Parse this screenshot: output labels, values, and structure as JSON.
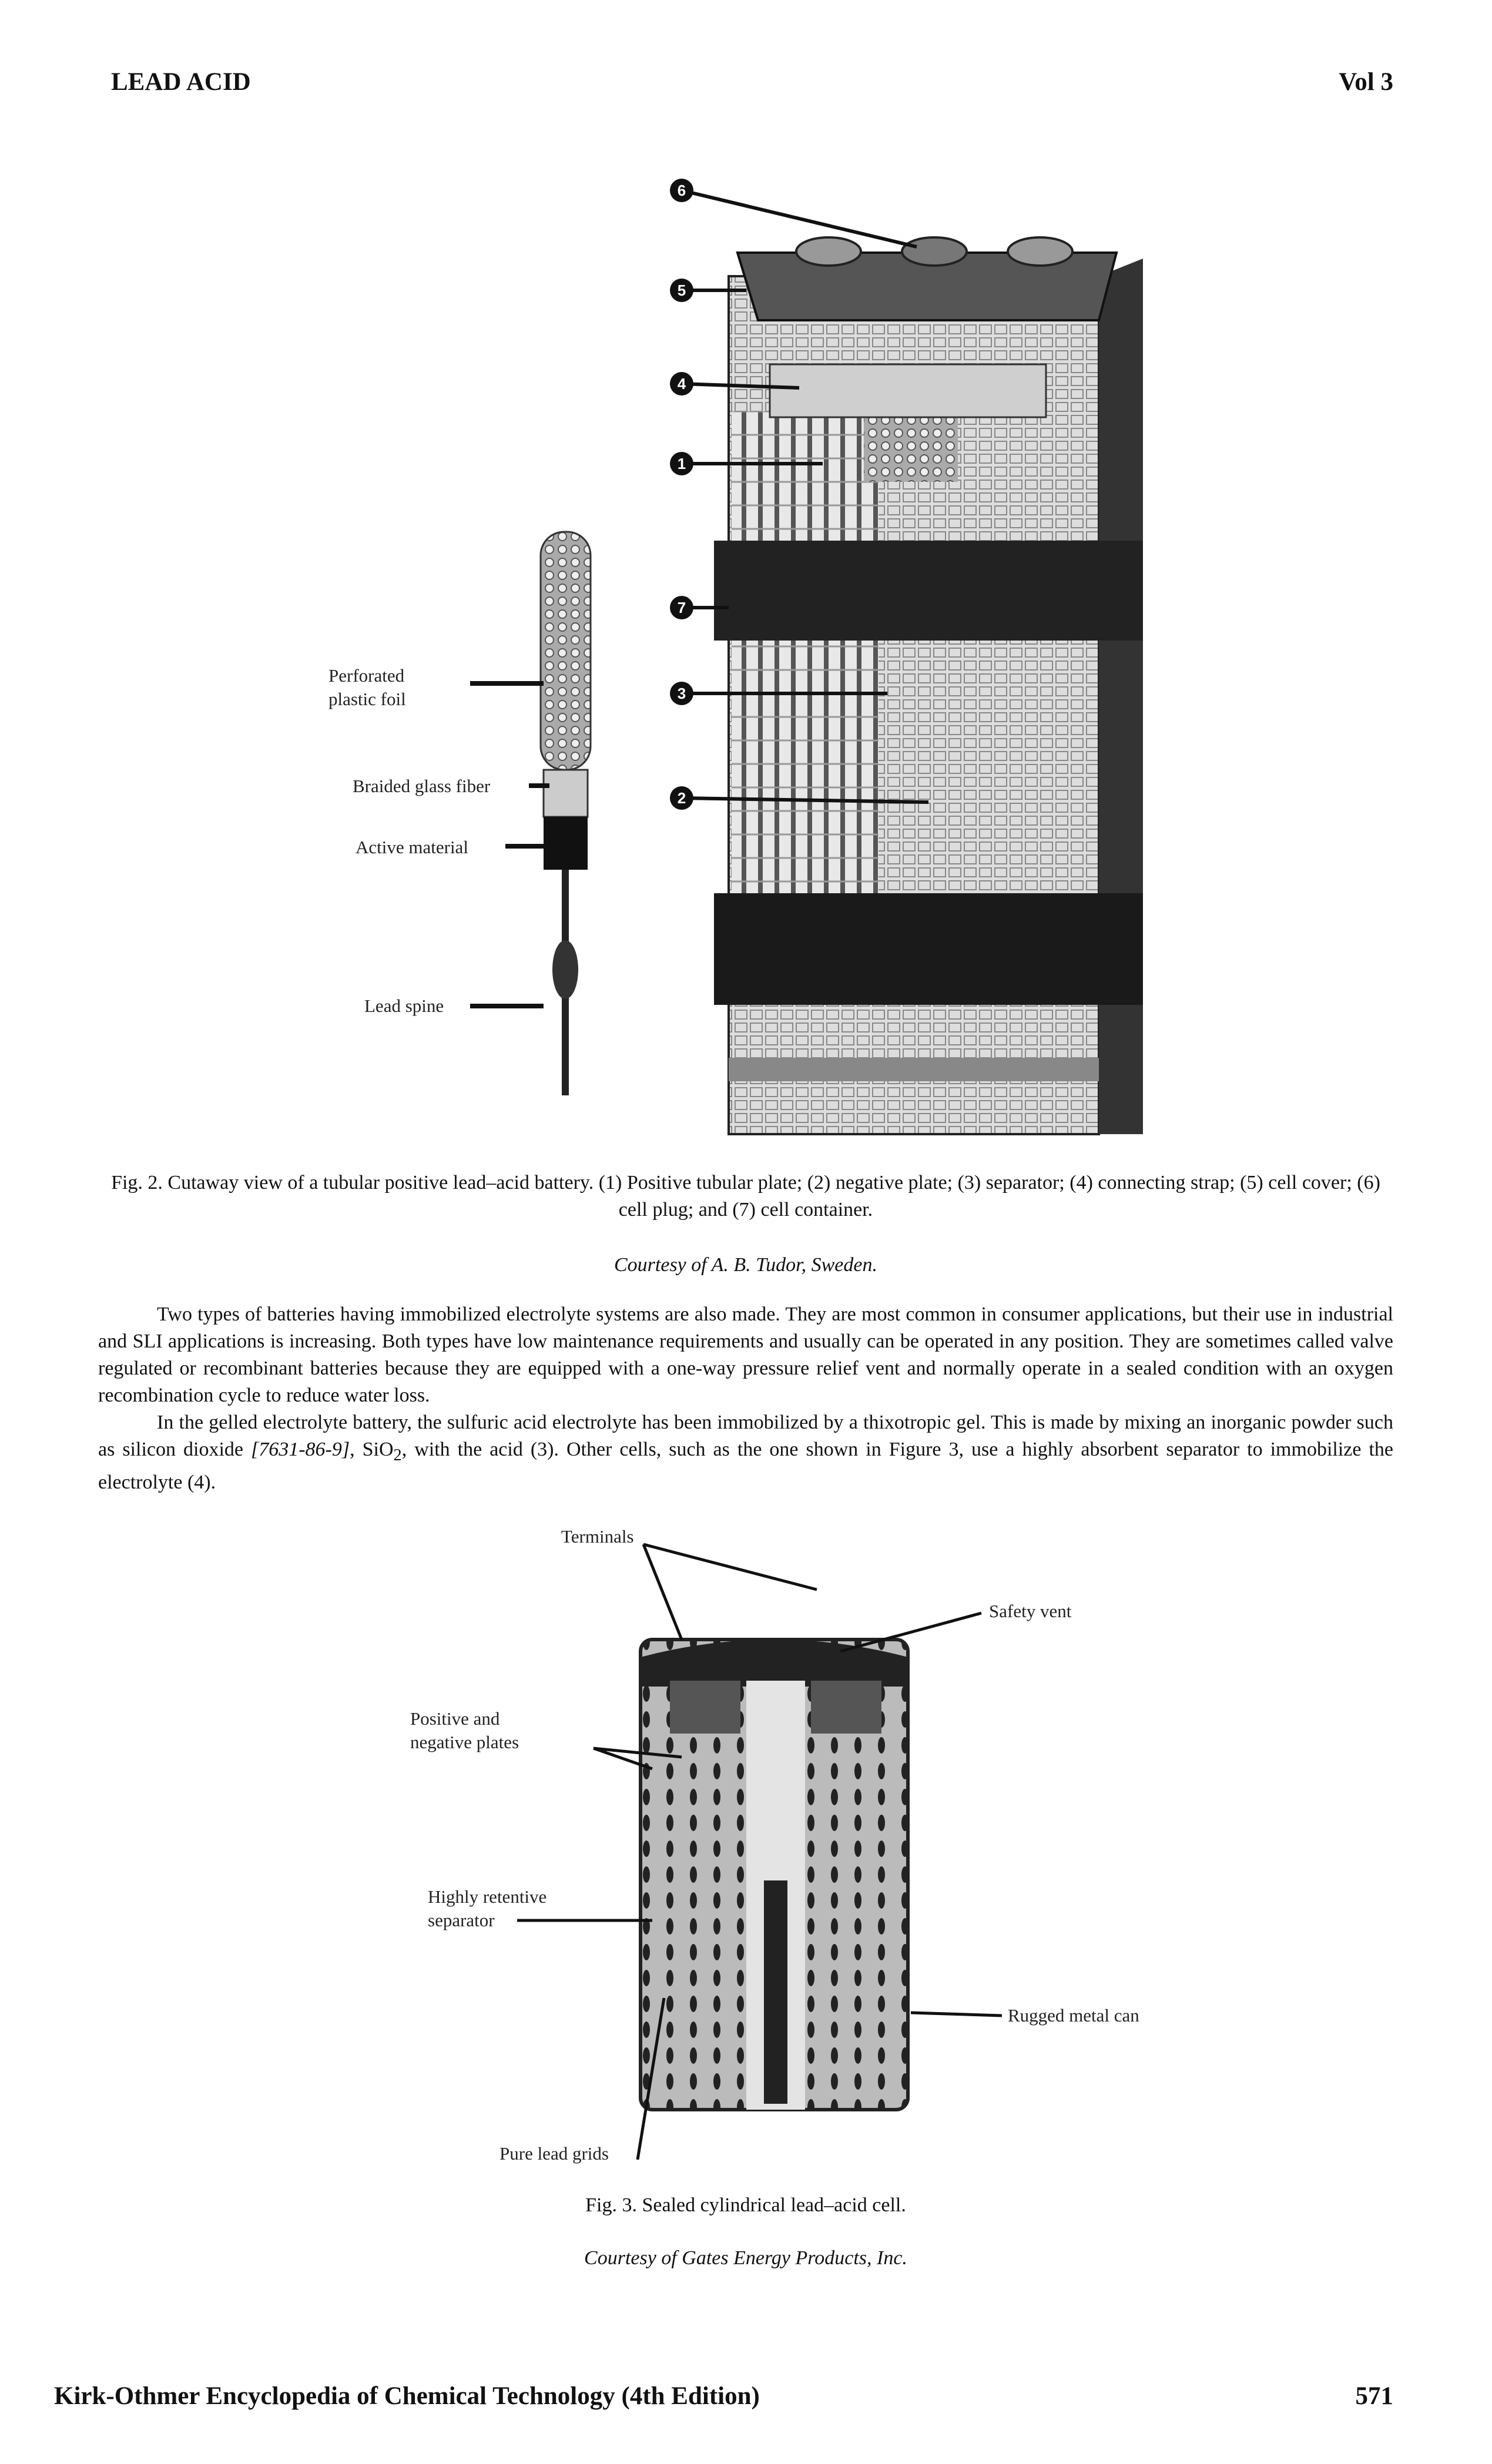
{
  "header": {
    "left": "LEAD ACID",
    "right": "Vol 3"
  },
  "figure2": {
    "callouts": [
      "6",
      "5",
      "4",
      "1",
      "7",
      "3",
      "2"
    ],
    "labels": {
      "foil": [
        "Perforated",
        "plastic foil"
      ],
      "fiber": "Braided glass fiber",
      "active": "Active material",
      "spine": "Lead spine"
    },
    "caption": "Fig. 2. Cutaway view of a tubular positive lead–acid battery. (1) Positive tubular plate; (2) negative plate; (3) separator; (4) connecting strap; (5) cell cover; (6) cell plug; and (7) cell container.",
    "credit": "Courtesy of A. B. Tudor, Sweden."
  },
  "body": {
    "paragraphs": [
      "Two types of batteries having immobilized electrolyte systems are also made. They are most common in consumer applications, but their use in industrial and SLI applications is increasing. Both types have low maintenance requirements and usually can be operated in any position. They are sometimes called valve regulated or recombinant batteries because they are equipped with a one-way pressure relief vent and normally operate in a sealed condition with an oxygen recombination cycle to reduce water loss.",
      {
        "before": "In the gelled electrolyte battery, the sulfuric acid electrolyte has been immobilized by a thixotropic gel. This is made by mixing an inorganic powder such as silicon dioxide ",
        "cas": "[7631-86-9]",
        "mid": ", SiO",
        "sub": "2",
        "after": ", with the acid (3). Other cells, such as the one shown in Figure 3, use a highly absorbent separator to immobilize the electrolyte (4)."
      }
    ]
  },
  "figure3": {
    "labels": {
      "terminals": "Terminals",
      "vent": "Safety vent",
      "plates": [
        "Positive and",
        "negative plates"
      ],
      "separator": [
        "Highly retentive",
        "separator"
      ],
      "can": "Rugged metal can",
      "grids": "Pure lead grids"
    },
    "caption": "Fig. 3. Sealed cylindrical lead–acid cell.",
    "credit": "Courtesy of Gates Energy Products, Inc."
  },
  "footer": {
    "left": "Kirk-Othmer Encyclopedia of Chemical Technology (4th Edition)",
    "right": "571"
  }
}
